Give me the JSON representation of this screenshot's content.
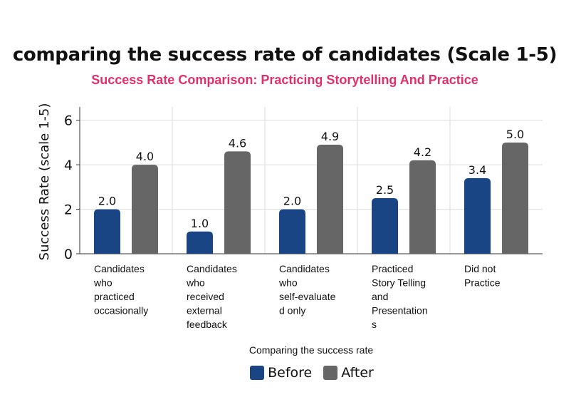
{
  "chart_data": {
    "type": "bar",
    "title": "comparing the success rate of candidates (Scale 1-5)",
    "subtitle": "Success Rate Comparison: Practicing Storytelling And Practice",
    "xlabel": "Comparing the success rate",
    "ylabel": "Success Rate (scale 1-5)",
    "ylim": [
      0,
      6.6
    ],
    "yticks": [
      0,
      2,
      4,
      6
    ],
    "grid": true,
    "legend_position": "bottom",
    "categories": [
      [
        "Candidates",
        "who",
        "practiced",
        "occasionally"
      ],
      [
        "Candidates",
        "who",
        "received",
        "external",
        "feedback"
      ],
      [
        "Candidates",
        "who",
        "self-evaluate",
        "d only"
      ],
      [
        "Practiced",
        "Story Telling",
        "and",
        "Presentation",
        "s"
      ],
      [
        "Did not",
        "Practice"
      ]
    ],
    "series": [
      {
        "name": "Before",
        "color": "#1a4584",
        "values": [
          2.0,
          1.0,
          2.0,
          2.5,
          3.4
        ]
      },
      {
        "name": "After",
        "color": "#666666",
        "values": [
          4.0,
          4.6,
          4.9,
          4.2,
          5.0
        ]
      }
    ]
  },
  "colors": {
    "subtitle": "#e0306a",
    "gridline": "#dddddd",
    "axis": "#333333"
  }
}
